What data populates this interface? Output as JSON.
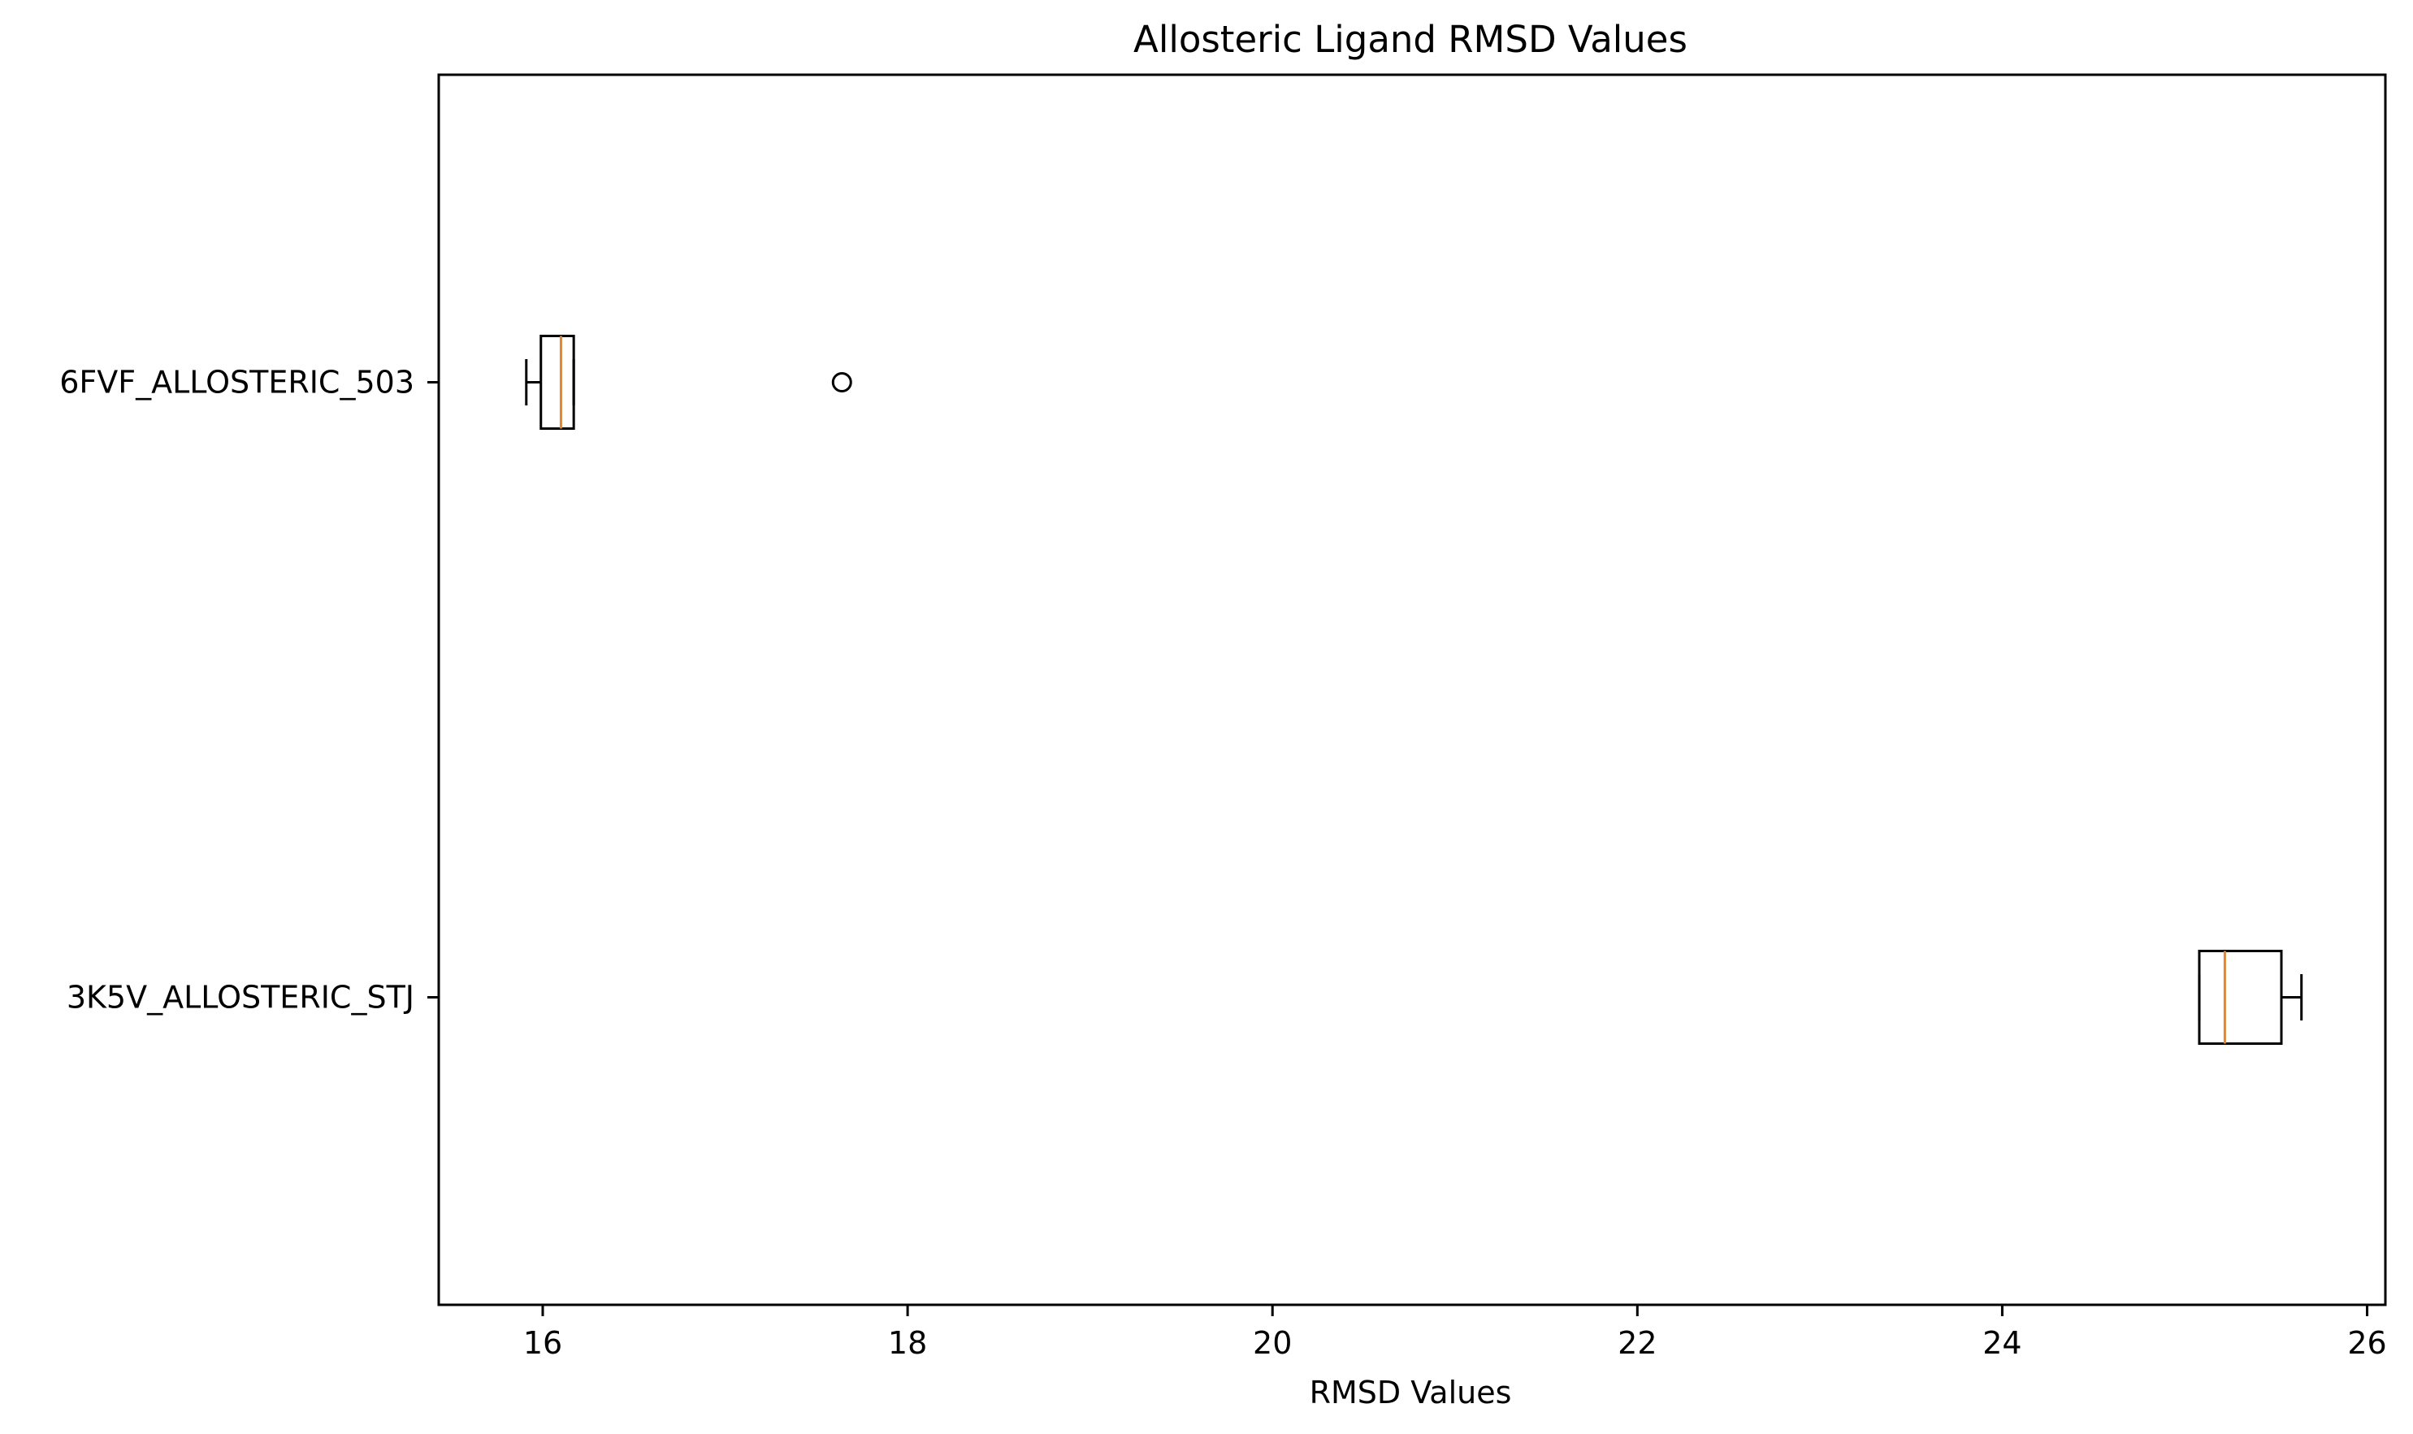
{
  "chart_data": {
    "type": "boxplot",
    "orientation": "horizontal",
    "title": "Allosteric Ligand RMSD Values",
    "xlabel": "RMSD Values",
    "ylabel": "",
    "xlim": [
      15.43,
      26.1
    ],
    "xticks": [
      16,
      18,
      20,
      22,
      24,
      26
    ],
    "categories": [
      "6FVF_ALLOSTERIC_503",
      "3K5V_ALLOSTERIC_STJ"
    ],
    "boxes": [
      {
        "name": "6FVF_ALLOSTERIC_503",
        "whisker_low": 15.91,
        "q1": 15.99,
        "median": 16.1,
        "q3": 16.17,
        "whisker_high": 16.17,
        "fliers": [
          17.64
        ]
      },
      {
        "name": "3K5V_ALLOSTERIC_STJ",
        "whisker_low": 25.08,
        "q1": 25.08,
        "median": 25.22,
        "q3": 25.53,
        "whisker_high": 25.64,
        "fliers": []
      }
    ],
    "colors": {
      "box": "#000000",
      "median": "#ff7f0e",
      "flier": "#000000"
    },
    "grid": false,
    "legend": "none"
  }
}
